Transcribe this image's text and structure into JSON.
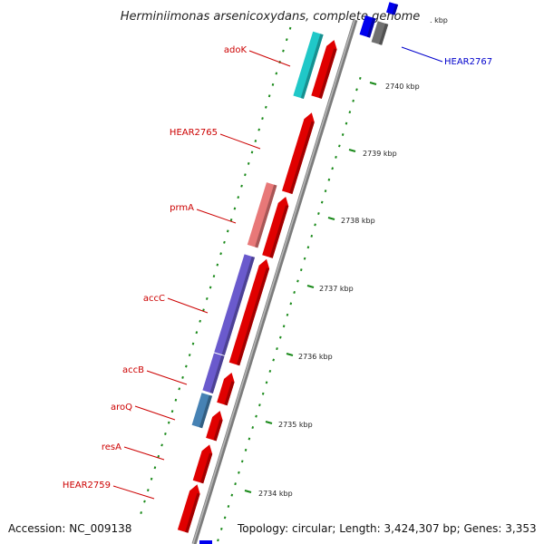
{
  "title": "Herminiimonas arsenicoxydans, complete genome",
  "footer": {
    "accession": "Accession: NC_009138",
    "summary": "Topology: circular; Length: 3,424,307 bp; Genes: 3,353"
  },
  "colors": {
    "forward_gene": "#e00000",
    "reverse_gene_adoK": "#20c8c8",
    "reverse_gene_prmA": "#e87878",
    "reverse_gene_acc": "#6a5acd",
    "reverse_gene_aroQ": "#4682b4",
    "top_gene_blue": "#0000ee",
    "top_gene_gray": "#707070",
    "backbone": "#888888",
    "tick": "#1a8a1a",
    "label_red": "#cc0000",
    "label_blue": "#0000cc"
  },
  "scale_ticks": [
    {
      "label": "2734 kbp"
    },
    {
      "label": "2735 kbp"
    },
    {
      "label": "2736 kbp"
    },
    {
      "label": "2737 kbp"
    },
    {
      "label": "2738 kbp"
    },
    {
      "label": "2739 kbp"
    },
    {
      "label": "2740 kbp"
    },
    {
      "label": ". kbp"
    }
  ],
  "gene_labels": [
    {
      "name": "adoK"
    },
    {
      "name": "HEAR2765"
    },
    {
      "name": "prmA"
    },
    {
      "name": "accC"
    },
    {
      "name": "accB"
    },
    {
      "name": "aroQ"
    },
    {
      "name": "resA"
    },
    {
      "name": "HEAR2759"
    },
    {
      "name": "HEAR2767"
    }
  ]
}
